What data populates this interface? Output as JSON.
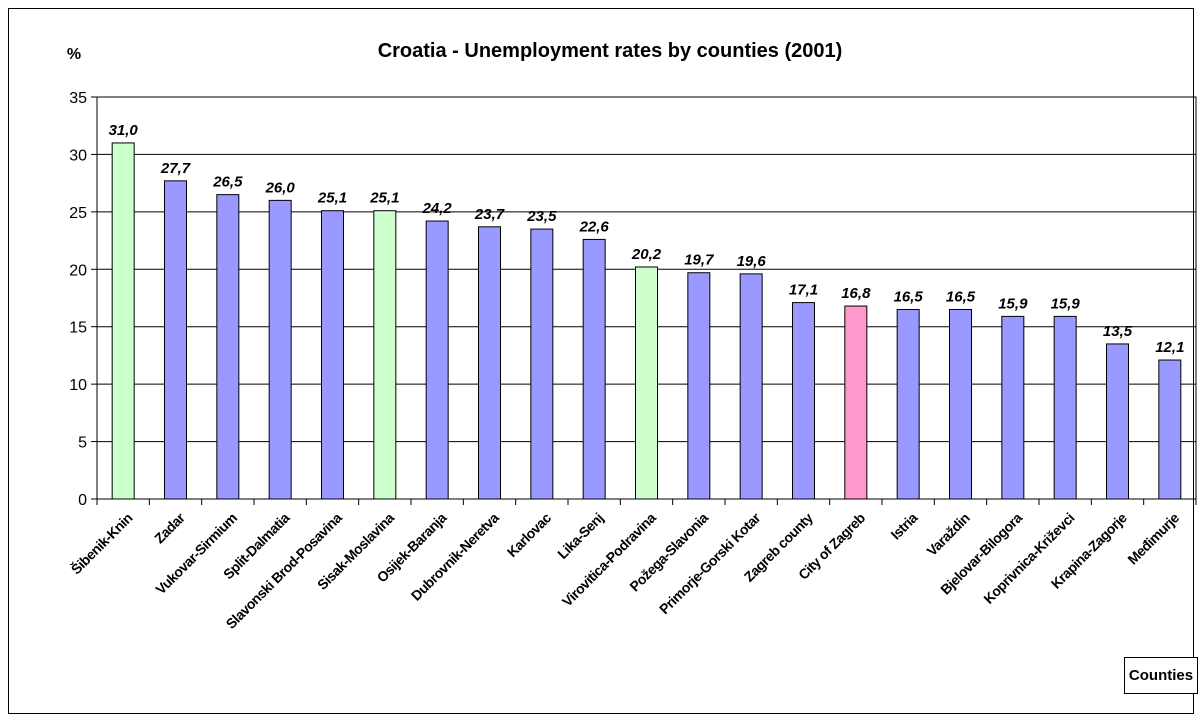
{
  "chart_data": {
    "type": "bar",
    "title": "Croatia - Unemployment rates by counties (2001)",
    "ylabel": "%",
    "xlabel": "Counties",
    "ylim": [
      0,
      35
    ],
    "yticks": [
      "0",
      "5",
      "10",
      "15",
      "20",
      "25",
      "30",
      "35"
    ],
    "grid": true,
    "categories": [
      "Šibenik-Knin",
      "Zadar",
      "Vukovar-Sirmium",
      "Split-Dalmatia",
      "Slavonski Brod-Posavina",
      "Sisak-Moslavina",
      "Osijek-Baranja",
      "Dubrovnik-Neretva",
      "Karlovac",
      "Lika-Senj",
      "Virovitica-Podravina",
      "Požega-Slavonia",
      "Primorje-Gorski Kotar",
      "Zagreb county",
      "City of Zagreb",
      "Istria",
      "Varaždin",
      "Bjelovar-Bilogora",
      "Koprivnica-Križevci",
      "Krapina-Zagorje",
      "Međimurje"
    ],
    "values": [
      31.0,
      27.7,
      26.5,
      26.0,
      25.1,
      25.1,
      24.2,
      23.7,
      23.5,
      22.6,
      20.2,
      19.7,
      19.6,
      17.1,
      16.8,
      16.5,
      16.5,
      15.9,
      15.9,
      13.5,
      12.1
    ],
    "value_labels": [
      "31,0",
      "27,7",
      "26,5",
      "26,0",
      "25,1",
      "25,1",
      "24,2",
      "23,7",
      "23,5",
      "22,6",
      "20,2",
      "19,7",
      "19,6",
      "17,1",
      "16,8",
      "16,5",
      "16,5",
      "15,9",
      "15,9",
      "13,5",
      "12,1"
    ],
    "bar_colors": [
      "#ccffcc",
      "#9999ff",
      "#9999ff",
      "#9999ff",
      "#9999ff",
      "#ccffcc",
      "#9999ff",
      "#9999ff",
      "#9999ff",
      "#9999ff",
      "#ccffcc",
      "#9999ff",
      "#9999ff",
      "#9999ff",
      "#ff99cc",
      "#9999ff",
      "#9999ff",
      "#9999ff",
      "#9999ff",
      "#9999ff",
      "#9999ff"
    ]
  }
}
